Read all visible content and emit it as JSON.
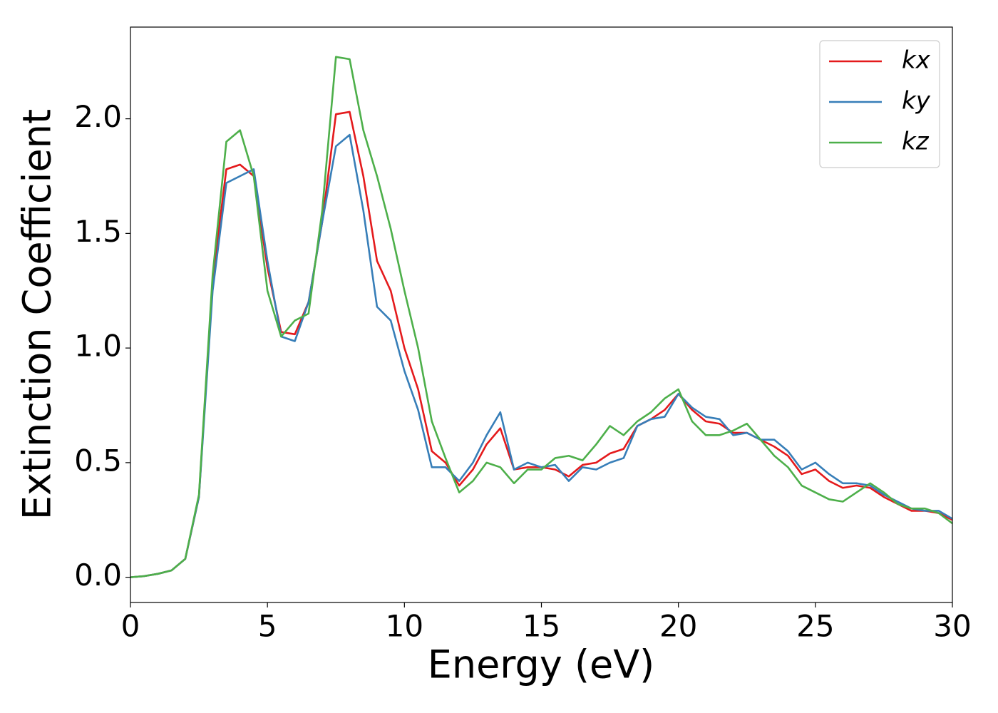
{
  "chart_data": {
    "type": "line",
    "x_label": "Energy (eV)",
    "y_label": "Extinction Coefficient",
    "x": [
      0,
      0.5,
      1,
      1.5,
      2,
      2.5,
      3,
      3.5,
      4,
      4.5,
      5,
      5.5,
      6,
      6.5,
      7,
      7.5,
      8,
      8.5,
      9,
      9.5,
      10,
      10.5,
      11,
      11.5,
      12,
      12.5,
      13,
      13.5,
      14,
      14.5,
      15,
      15.5,
      16,
      16.5,
      17,
      17.5,
      18,
      18.5,
      19,
      19.5,
      20,
      20.5,
      21,
      21.5,
      22,
      22.5,
      23,
      23.5,
      24,
      24.5,
      25,
      25.5,
      26,
      26.5,
      27,
      27.5,
      28,
      28.5,
      29,
      29.5,
      30
    ],
    "series": [
      {
        "name": "kx",
        "color": "#e41a1c",
        "values": [
          0,
          0.005,
          0.015,
          0.03,
          0.08,
          0.35,
          1.3,
          1.78,
          1.8,
          1.75,
          1.35,
          1.07,
          1.06,
          1.2,
          1.55,
          2.02,
          2.03,
          1.75,
          1.38,
          1.25,
          1.0,
          0.82,
          0.55,
          0.5,
          0.4,
          0.47,
          0.58,
          0.65,
          0.47,
          0.48,
          0.48,
          0.47,
          0.44,
          0.49,
          0.5,
          0.54,
          0.56,
          0.66,
          0.69,
          0.73,
          0.8,
          0.73,
          0.68,
          0.67,
          0.63,
          0.63,
          0.6,
          0.57,
          0.53,
          0.45,
          0.47,
          0.42,
          0.39,
          0.4,
          0.39,
          0.35,
          0.32,
          0.29,
          0.29,
          0.28,
          0.25
        ]
      },
      {
        "name": "ky",
        "color": "#377eb8",
        "values": [
          0,
          0.005,
          0.015,
          0.03,
          0.08,
          0.35,
          1.25,
          1.72,
          1.75,
          1.78,
          1.38,
          1.05,
          1.03,
          1.2,
          1.55,
          1.88,
          1.93,
          1.6,
          1.18,
          1.12,
          0.9,
          0.73,
          0.48,
          0.48,
          0.42,
          0.5,
          0.62,
          0.72,
          0.47,
          0.5,
          0.48,
          0.49,
          0.42,
          0.48,
          0.47,
          0.5,
          0.52,
          0.66,
          0.69,
          0.7,
          0.8,
          0.74,
          0.7,
          0.69,
          0.62,
          0.63,
          0.6,
          0.6,
          0.55,
          0.47,
          0.5,
          0.45,
          0.41,
          0.41,
          0.4,
          0.36,
          0.33,
          0.3,
          0.29,
          0.29,
          0.255
        ]
      },
      {
        "name": "kz",
        "color": "#4daf4a",
        "values": [
          0,
          0.005,
          0.015,
          0.03,
          0.08,
          0.36,
          1.32,
          1.9,
          1.95,
          1.75,
          1.25,
          1.05,
          1.12,
          1.15,
          1.6,
          2.27,
          2.26,
          1.95,
          1.75,
          1.52,
          1.25,
          1.0,
          0.68,
          0.52,
          0.37,
          0.42,
          0.5,
          0.48,
          0.41,
          0.47,
          0.47,
          0.52,
          0.53,
          0.51,
          0.58,
          0.66,
          0.62,
          0.68,
          0.72,
          0.78,
          0.82,
          0.68,
          0.62,
          0.62,
          0.64,
          0.67,
          0.6,
          0.53,
          0.48,
          0.4,
          0.37,
          0.34,
          0.33,
          0.37,
          0.41,
          0.37,
          0.32,
          0.3,
          0.3,
          0.28,
          0.235
        ]
      }
    ],
    "xlim": [
      0,
      30
    ],
    "xticks": [
      0,
      5,
      10,
      15,
      20,
      25,
      30
    ],
    "ylim": [
      -0.11,
      2.4
    ],
    "yticks": [
      {
        "value": 0,
        "label": "0.0"
      },
      0.5,
      {
        "value": 1,
        "label": "1.0"
      },
      1.5,
      {
        "value": 2,
        "label": "2.0"
      }
    ],
    "legend": "upper right",
    "grid": false
  }
}
